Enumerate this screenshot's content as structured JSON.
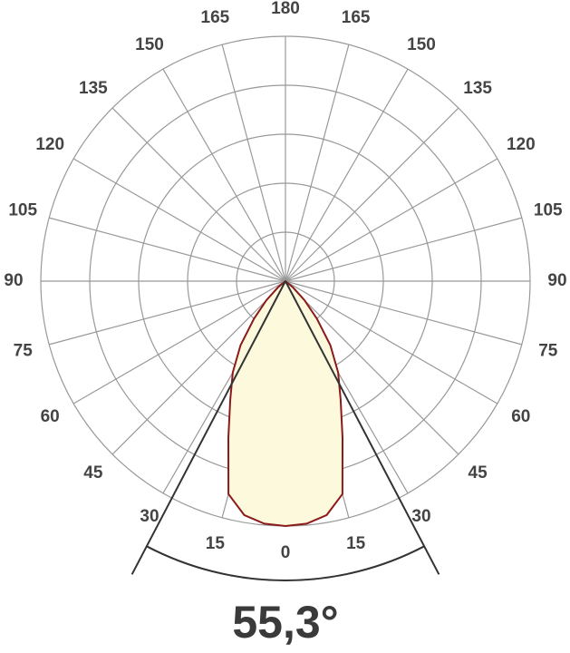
{
  "chart_data": {
    "type": "polar",
    "angles": [
      0,
      5,
      10,
      15,
      20,
      25,
      30,
      35,
      40,
      45,
      50,
      55
    ],
    "values": [
      5.0,
      4.97,
      4.85,
      4.5,
      3.41,
      2.67,
      2.15,
      1.6,
      1.0,
      0.55,
      0.2,
      0
    ],
    "color": "#8b1a1a",
    "fill": "#fdf9dc",
    "rlim": [
      0,
      5
    ],
    "rticks": [
      1,
      2,
      3,
      4,
      5
    ],
    "angle_ticks": [
      0,
      15,
      30,
      45,
      60,
      75,
      90,
      105,
      120,
      135,
      150,
      165,
      180
    ],
    "beam_angle": {
      "value": 55.3,
      "label": "55,3°"
    }
  }
}
